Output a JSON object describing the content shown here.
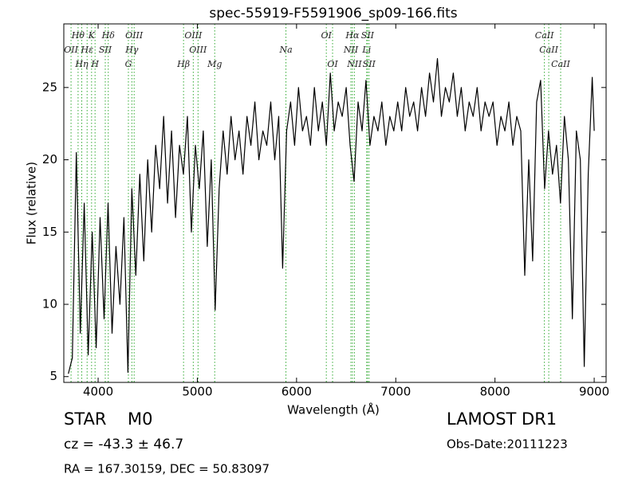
{
  "chart_data": {
    "type": "line",
    "title": "spec-55919-F5591906_sp09-166.fits",
    "x_label": "Wavelength (Å)",
    "y_label": "Flux (relative)",
    "xlim": [
      3654,
      9120
    ],
    "ylim": [
      4.6,
      29.4
    ],
    "xticks": [
      4000,
      5000,
      6000,
      7000,
      8000,
      9000
    ],
    "yticks": [
      5,
      10,
      15,
      20,
      25
    ],
    "grid": false,
    "line_color": "#000000",
    "marker_color": "#33aa33",
    "x": [
      3700,
      3740,
      3780,
      3820,
      3860,
      3900,
      3940,
      3980,
      4020,
      4060,
      4100,
      4140,
      4180,
      4220,
      4260,
      4300,
      4340,
      4380,
      4420,
      4460,
      4500,
      4540,
      4580,
      4620,
      4660,
      4700,
      4740,
      4780,
      4820,
      4860,
      4900,
      4940,
      4980,
      5020,
      5060,
      5100,
      5140,
      5180,
      5220,
      5260,
      5300,
      5340,
      5380,
      5420,
      5460,
      5500,
      5540,
      5580,
      5620,
      5660,
      5700,
      5740,
      5780,
      5820,
      5860,
      5900,
      5940,
      5980,
      6020,
      6060,
      6100,
      6140,
      6180,
      6220,
      6260,
      6300,
      6340,
      6380,
      6420,
      6460,
      6500,
      6540,
      6580,
      6620,
      6660,
      6700,
      6740,
      6780,
      6820,
      6860,
      6900,
      6940,
      6980,
      7020,
      7060,
      7100,
      7140,
      7180,
      7220,
      7260,
      7300,
      7340,
      7380,
      7420,
      7460,
      7500,
      7540,
      7580,
      7620,
      7660,
      7700,
      7740,
      7780,
      7820,
      7860,
      7900,
      7940,
      7980,
      8020,
      8060,
      8100,
      8140,
      8180,
      8220,
      8260,
      8300,
      8340,
      8380,
      8420,
      8460,
      8500,
      8540,
      8580,
      8620,
      8660,
      8700,
      8740,
      8780,
      8820,
      8860,
      8900,
      8940,
      8980,
      9000
    ],
    "values": [
      5.2,
      6.3,
      20.5,
      8,
      17,
      6.5,
      15,
      7,
      16,
      9,
      17,
      8,
      14,
      10,
      16,
      5.3,
      18,
      12,
      19,
      13,
      20,
      15,
      21,
      18,
      23,
      17,
      22,
      16,
      21,
      19,
      23,
      15,
      21,
      18,
      22,
      14,
      20,
      9.6,
      18,
      22,
      19,
      23,
      20,
      22,
      19,
      23,
      21,
      24,
      20,
      22,
      21,
      24,
      20,
      23,
      12.5,
      22,
      24,
      21,
      25,
      22,
      23,
      21,
      25,
      22,
      24,
      21,
      26,
      22,
      24,
      23,
      25,
      21,
      18.5,
      24,
      22,
      25.5,
      21,
      23,
      22,
      24,
      21,
      23,
      22,
      24,
      22,
      25,
      23,
      24,
      22,
      25,
      23,
      26,
      24,
      27,
      23,
      25,
      24,
      26,
      23,
      25,
      22,
      24,
      23,
      25,
      22,
      24,
      23,
      24,
      21,
      23,
      22,
      24,
      21,
      23,
      22,
      12,
      20,
      13,
      24,
      25.5,
      18,
      22,
      19,
      21,
      17,
      23,
      20,
      9,
      22,
      20,
      5.7,
      19,
      25.7,
      22
    ],
    "line_markers": [
      [
        {
          "wavelength": 3798,
          "label": "Hθ"
        },
        {
          "wavelength": 3934,
          "label": "K"
        },
        {
          "wavelength": 4102,
          "label": "Hδ"
        },
        {
          "wavelength": 4363,
          "label": "OIII"
        },
        {
          "wavelength": 4959,
          "label": "OIII"
        },
        {
          "wavelength": 6300,
          "label": "OI"
        },
        {
          "wavelength": 6563,
          "label": "Hα"
        },
        {
          "wavelength": 6716,
          "label": "SII"
        },
        {
          "wavelength": 8498,
          "label": "CaII"
        }
      ],
      [
        {
          "wavelength": 3727,
          "label": "OII"
        },
        {
          "wavelength": 3889,
          "label": "Hε"
        },
        {
          "wavelength": 4072,
          "label": "SII"
        },
        {
          "wavelength": 4340,
          "label": "Hγ"
        },
        {
          "wavelength": 5007,
          "label": "OIII"
        },
        {
          "wavelength": 5893,
          "label": "Na"
        },
        {
          "wavelength": 6548,
          "label": "NII"
        },
        {
          "wavelength": 6707,
          "label": "Li"
        },
        {
          "wavelength": 8542,
          "label": "CaII"
        }
      ],
      [
        {
          "wavelength": 3835,
          "label": "Hη"
        },
        {
          "wavelength": 3969,
          "label": "H"
        },
        {
          "wavelength": 4305,
          "label": "G"
        },
        {
          "wavelength": 4861,
          "label": "Hβ"
        },
        {
          "wavelength": 5175,
          "label": "Mg"
        },
        {
          "wavelength": 6363,
          "label": "OI"
        },
        {
          "wavelength": 6583,
          "label": "NII"
        },
        {
          "wavelength": 6731,
          "label": "SII"
        },
        {
          "wavelength": 8662,
          "label": "CaII"
        }
      ]
    ],
    "object_class": "STAR",
    "subclass": "M0",
    "survey": "LAMOST DR1",
    "redshift_text": "cz = -43.3 ± 46.7",
    "obs_date": "Obs-Date:20111223",
    "coordinates": "RA = 167.30159, DEC = 50.83097"
  }
}
